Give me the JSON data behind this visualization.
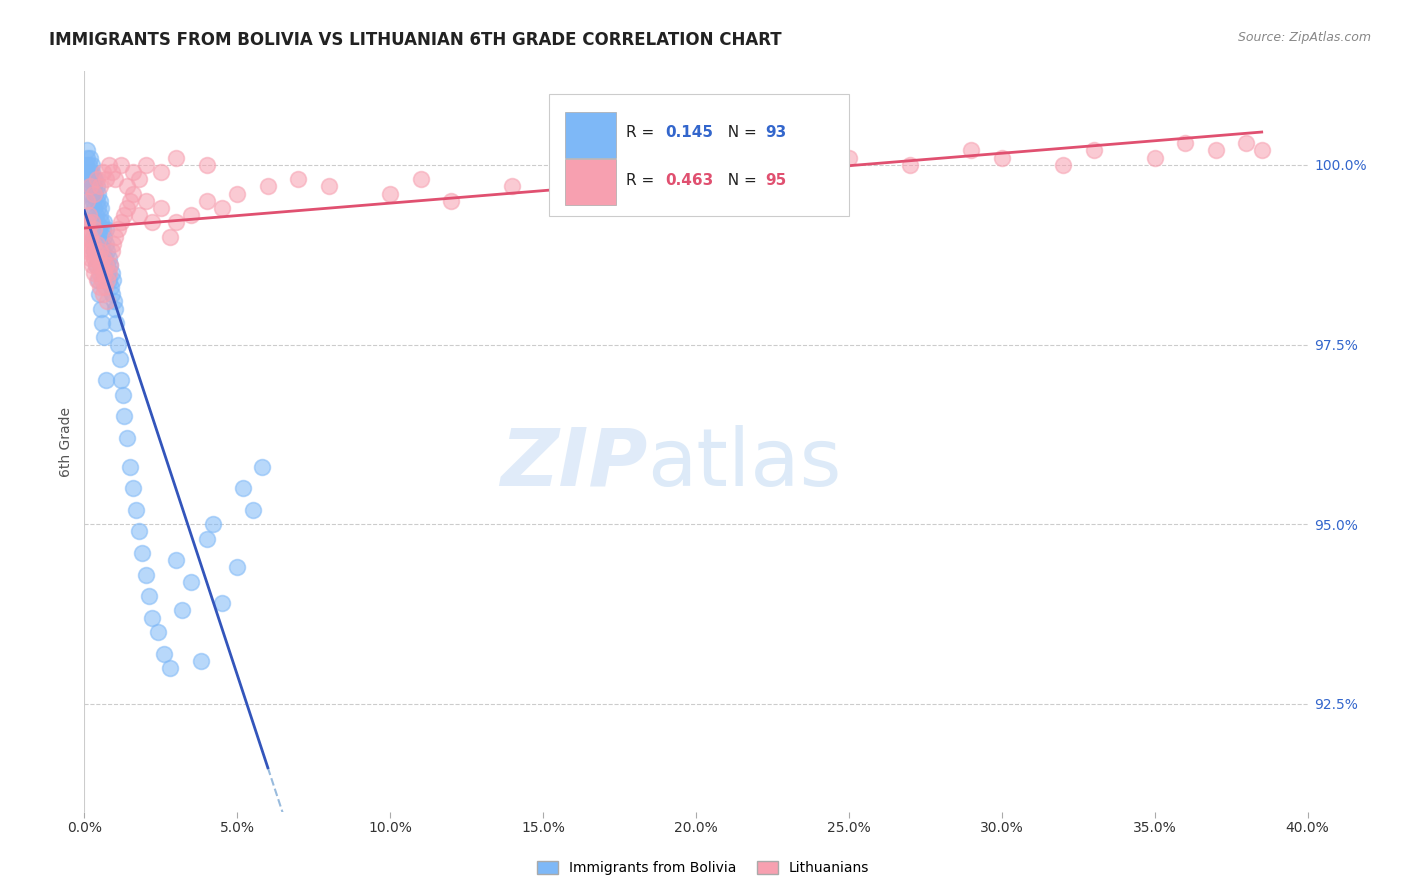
{
  "title": "IMMIGRANTS FROM BOLIVIA VS LITHUANIAN 6TH GRADE CORRELATION CHART",
  "source": "Source: ZipAtlas.com",
  "ylabel": "6th Grade",
  "bolivia_color": "#7EB8F7",
  "lithuanian_color": "#F7A0B0",
  "bolivia_line_color": "#3355BB",
  "lithuanian_line_color": "#E05070",
  "dashed_line_color": "#99BBDD",
  "R_bolivia": 0.145,
  "N_bolivia": 93,
  "R_lithuanian": 0.463,
  "N_lithuanian": 95,
  "xlim": [
    0.0,
    40.0
  ],
  "ylim": [
    91.0,
    101.3
  ],
  "yticks": [
    92.5,
    95.0,
    97.5,
    100.0
  ],
  "xticks": [
    0.0,
    5.0,
    10.0,
    15.0,
    20.0,
    25.0,
    30.0,
    35.0,
    40.0
  ],
  "bolivia_x": [
    0.05,
    0.07,
    0.1,
    0.1,
    0.12,
    0.15,
    0.15,
    0.18,
    0.2,
    0.2,
    0.22,
    0.25,
    0.25,
    0.28,
    0.3,
    0.3,
    0.32,
    0.35,
    0.35,
    0.38,
    0.4,
    0.4,
    0.42,
    0.45,
    0.45,
    0.48,
    0.5,
    0.5,
    0.52,
    0.55,
    0.55,
    0.58,
    0.6,
    0.62,
    0.65,
    0.65,
    0.68,
    0.7,
    0.7,
    0.73,
    0.75,
    0.78,
    0.8,
    0.82,
    0.85,
    0.88,
    0.9,
    0.92,
    0.95,
    0.98,
    1.0,
    1.05,
    1.1,
    1.15,
    1.2,
    1.25,
    1.3,
    1.4,
    1.5,
    1.6,
    1.7,
    1.8,
    1.9,
    2.0,
    2.1,
    2.2,
    2.4,
    2.6,
    2.8,
    3.0,
    3.2,
    3.5,
    3.8,
    4.0,
    4.2,
    4.5,
    5.0,
    5.2,
    5.5,
    5.8,
    0.08,
    0.13,
    0.17,
    0.22,
    0.27,
    0.33,
    0.37,
    0.43,
    0.47,
    0.53,
    0.57,
    0.63,
    0.72
  ],
  "bolivia_y": [
    100.0,
    100.1,
    99.9,
    100.2,
    99.8,
    100.0,
    99.7,
    99.9,
    99.8,
    100.1,
    99.6,
    99.9,
    100.0,
    99.5,
    99.7,
    99.8,
    99.4,
    99.6,
    99.8,
    99.3,
    99.5,
    99.7,
    99.2,
    99.4,
    99.6,
    99.1,
    99.3,
    99.5,
    99.0,
    99.2,
    99.4,
    98.9,
    99.1,
    98.8,
    99.0,
    99.2,
    98.7,
    98.9,
    99.1,
    98.6,
    98.8,
    98.5,
    98.7,
    98.4,
    98.6,
    98.3,
    98.5,
    98.2,
    98.4,
    98.1,
    98.0,
    97.8,
    97.5,
    97.3,
    97.0,
    96.8,
    96.5,
    96.2,
    95.8,
    95.5,
    95.2,
    94.9,
    94.6,
    94.3,
    94.0,
    93.7,
    93.5,
    93.2,
    93.0,
    94.5,
    93.8,
    94.2,
    93.1,
    94.8,
    95.0,
    93.9,
    94.4,
    95.5,
    95.2,
    95.8,
    99.8,
    99.6,
    99.4,
    99.2,
    99.0,
    98.8,
    98.6,
    98.4,
    98.2,
    98.0,
    97.8,
    97.6,
    97.0
  ],
  "lithuanian_x": [
    0.05,
    0.08,
    0.1,
    0.12,
    0.15,
    0.15,
    0.18,
    0.2,
    0.22,
    0.25,
    0.25,
    0.28,
    0.3,
    0.3,
    0.32,
    0.35,
    0.38,
    0.4,
    0.42,
    0.45,
    0.48,
    0.5,
    0.52,
    0.55,
    0.58,
    0.6,
    0.62,
    0.65,
    0.68,
    0.7,
    0.73,
    0.75,
    0.8,
    0.85,
    0.9,
    0.95,
    1.0,
    1.1,
    1.2,
    1.3,
    1.4,
    1.5,
    1.6,
    1.8,
    2.0,
    2.2,
    2.5,
    2.8,
    3.0,
    3.5,
    4.0,
    4.5,
    5.0,
    6.0,
    7.0,
    8.0,
    10.0,
    11.0,
    12.0,
    14.0,
    16.0,
    17.0,
    18.0,
    19.0,
    20.0,
    22.0,
    25.0,
    27.0,
    29.0,
    30.0,
    32.0,
    33.0,
    35.0,
    36.0,
    37.0,
    38.0,
    38.5,
    0.1,
    0.2,
    0.3,
    0.4,
    0.5,
    0.6,
    0.7,
    0.8,
    0.9,
    1.0,
    1.2,
    1.4,
    1.6,
    1.8,
    2.0,
    2.5,
    3.0,
    4.0
  ],
  "lithuanian_y": [
    99.0,
    99.2,
    98.8,
    99.1,
    98.9,
    99.3,
    98.7,
    99.0,
    98.8,
    99.2,
    98.6,
    98.9,
    98.7,
    99.1,
    98.5,
    98.8,
    98.6,
    98.9,
    98.4,
    98.7,
    98.5,
    98.8,
    98.3,
    98.6,
    98.4,
    98.7,
    98.2,
    98.5,
    98.3,
    98.6,
    98.1,
    98.4,
    98.5,
    98.6,
    98.8,
    98.9,
    99.0,
    99.1,
    99.2,
    99.3,
    99.4,
    99.5,
    99.6,
    99.3,
    99.5,
    99.2,
    99.4,
    99.0,
    99.2,
    99.3,
    99.5,
    99.4,
    99.6,
    99.7,
    99.8,
    99.7,
    99.6,
    99.8,
    99.5,
    99.7,
    99.8,
    99.9,
    100.0,
    99.8,
    100.0,
    99.9,
    100.1,
    100.0,
    100.2,
    100.1,
    100.0,
    100.2,
    100.1,
    100.3,
    100.2,
    100.3,
    100.2,
    99.5,
    99.7,
    99.6,
    99.8,
    99.7,
    99.9,
    99.8,
    100.0,
    99.9,
    99.8,
    100.0,
    99.7,
    99.9,
    99.8,
    100.0,
    99.9,
    100.1,
    100.0
  ]
}
